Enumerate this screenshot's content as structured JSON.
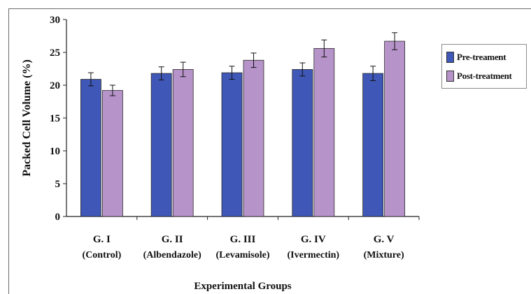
{
  "chart_data": {
    "type": "bar",
    "title": "",
    "xlabel": "Experimental Groups",
    "ylabel": "Packed Cell Volume (%)",
    "ylim": [
      0,
      30
    ],
    "yticks": [
      "0",
      "5",
      "10",
      "15",
      "20",
      "25",
      "30"
    ],
    "grid": false,
    "legend_position": "right",
    "categories": [
      {
        "line1": "G. I",
        "line2": "(Control)"
      },
      {
        "line1": "G. II",
        "line2": "(Albendazole)"
      },
      {
        "line1": "G. III",
        "line2": "(Levamisole)"
      },
      {
        "line1": "G. IV",
        "line2": "(Ivermectin)"
      },
      {
        "line1": "G. V",
        "line2": "(Mixture)"
      }
    ],
    "series": [
      {
        "name": "Pre-treament",
        "color": "#3f57b6",
        "values": [
          20.9,
          21.8,
          21.9,
          22.4,
          21.8
        ],
        "errors": [
          1.0,
          1.0,
          1.0,
          1.0,
          1.1
        ]
      },
      {
        "name": "Post-treatment",
        "color": "#b693c9",
        "values": [
          19.2,
          22.4,
          23.8,
          25.6,
          26.7
        ],
        "errors": [
          0.8,
          1.1,
          1.1,
          1.3,
          1.3
        ]
      }
    ]
  }
}
